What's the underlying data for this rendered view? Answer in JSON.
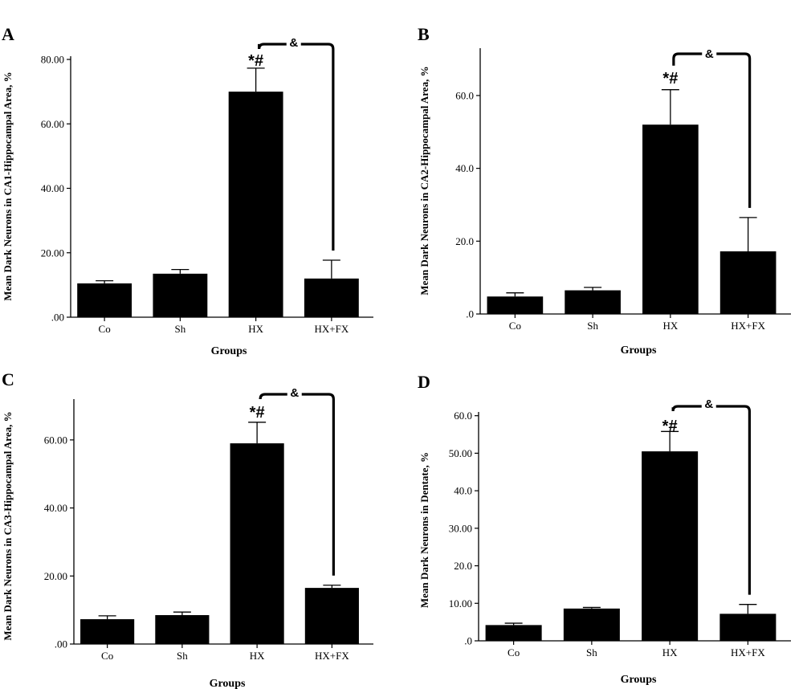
{
  "chart_data": [
    {
      "panel": "A",
      "type": "bar",
      "categories": [
        "Co",
        "Sh",
        "HX",
        "HX+FX"
      ],
      "values": [
        10.5,
        13.5,
        70.0,
        12.0
      ],
      "error": [
        0.8,
        1.3,
        7.3,
        5.7
      ],
      "ylim": [
        0,
        81
      ],
      "yticks": [
        0,
        20,
        40,
        60,
        80
      ],
      "ytick_labels": [
        ".00",
        "20.00",
        "40.00",
        "60.00",
        "80.00"
      ],
      "xlabel": "Groups",
      "ylabel": "Mean Dark Neurons in CA1-Hippocampal Area, %",
      "annotations": [
        {
          "category": "HX",
          "text": "*#"
        },
        {
          "from": "HX",
          "to": "HX+FX",
          "text": "&"
        }
      ],
      "color": "#000000"
    },
    {
      "panel": "B",
      "type": "bar",
      "categories": [
        "Co",
        "Sh",
        "HX",
        "HX+FX"
      ],
      "values": [
        4.8,
        6.5,
        52.0,
        17.2
      ],
      "error": [
        1.0,
        0.8,
        9.6,
        9.3
      ],
      "ylim": [
        0,
        73
      ],
      "yticks": [
        0,
        20,
        40,
        60
      ],
      "ytick_labels": [
        ".0",
        "20.0",
        "40.0",
        "60.0"
      ],
      "xlabel": "Groups",
      "ylabel": "Mean Dark Neurons in CA2-Hippocampal Area, %",
      "annotations": [
        {
          "category": "HX",
          "text": "*#"
        },
        {
          "from": "HX",
          "to": "HX+FX",
          "text": "&"
        }
      ],
      "color": "#000000"
    },
    {
      "panel": "C",
      "type": "bar",
      "categories": [
        "Co",
        "Sh",
        "HX",
        "HX+FX"
      ],
      "values": [
        7.3,
        8.5,
        59.0,
        16.5
      ],
      "error": [
        1.0,
        0.9,
        6.2,
        0.8
      ],
      "ylim": [
        0,
        72
      ],
      "yticks": [
        0,
        20,
        40,
        60
      ],
      "ytick_labels": [
        ".00",
        "20.00",
        "40.00",
        "60.00"
      ],
      "xlabel": "Groups",
      "ylabel": "Mean Dark Neurons in CA3-Hippocampal Area, %",
      "annotations": [
        {
          "category": "HX",
          "text": "*#"
        },
        {
          "from": "HX",
          "to": "HX+FX",
          "text": "&"
        }
      ],
      "color": "#000000"
    },
    {
      "panel": "D",
      "type": "bar",
      "categories": [
        "Co",
        "Sh",
        "HX",
        "HX+FX"
      ],
      "values": [
        4.2,
        8.6,
        50.5,
        7.2
      ],
      "error": [
        0.5,
        0.3,
        5.3,
        2.5
      ],
      "ylim": [
        0,
        61
      ],
      "yticks": [
        0,
        10,
        20,
        30,
        40,
        50,
        60
      ],
      "ytick_labels": [
        ".0",
        "10.00",
        "20.0",
        "30.00",
        "40.0",
        "50.00",
        "60.0"
      ],
      "xlabel": "Groups",
      "ylabel": "Mean Dark Neurons in Dentate, %",
      "annotations": [
        {
          "category": "HX",
          "text": "*#"
        },
        {
          "from": "HX",
          "to": "HX+FX",
          "text": "&"
        }
      ],
      "color": "#000000"
    }
  ]
}
